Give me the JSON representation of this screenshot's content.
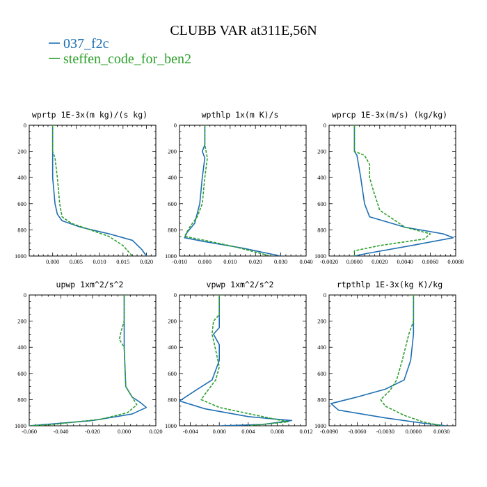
{
  "figure": {
    "title": "CLUBB VAR at311E,56N"
  },
  "legend": [
    {
      "name": "037_f2c",
      "color": "#1f6fb2",
      "dash": ""
    },
    {
      "name": "steffen_code_for_ben2",
      "color": "#2ca02c",
      "dash": "4,2"
    }
  ],
  "chart_data": [
    {
      "type": "line",
      "title": "wprtp  1E-3x(m kg)/(s kg)",
      "xlim": [
        -0.005,
        0.022
      ],
      "ylim": [
        1000,
        0
      ],
      "xticks": [
        0.0,
        0.005,
        0.01,
        0.015,
        0.02
      ],
      "xtick_labels": [
        "0.000",
        "0.005",
        "0.010",
        "0.015",
        "0.020"
      ],
      "yticks": [
        0,
        200,
        400,
        600,
        800,
        1000
      ],
      "ytick_labels": [
        "0",
        "200",
        "400",
        "600",
        "800",
        "1000"
      ],
      "series": [
        {
          "name": "037_f2c",
          "values": [
            [
              0.0,
              0
            ],
            [
              0.0,
              200
            ],
            [
              0.0,
              400
            ],
            [
              0.0005,
              600
            ],
            [
              0.001,
              680
            ],
            [
              0.002,
              730
            ],
            [
              0.006,
              780
            ],
            [
              0.012,
              830
            ],
            [
              0.017,
              880
            ],
            [
              0.019,
              950
            ],
            [
              0.02,
              1000
            ]
          ]
        },
        {
          "name": "steffen_code_for_ben2",
          "values": [
            [
              0.0,
              0
            ],
            [
              0.0,
              200
            ],
            [
              0.0005,
              250
            ],
            [
              0.001,
              400
            ],
            [
              0.0015,
              600
            ],
            [
              0.002,
              700
            ],
            [
              0.004,
              750
            ],
            [
              0.008,
              800
            ],
            [
              0.012,
              850
            ],
            [
              0.015,
              920
            ],
            [
              0.017,
              1000
            ]
          ]
        }
      ]
    },
    {
      "type": "line",
      "title": "wpthlp  1x(m K)/s",
      "xlim": [
        -0.01,
        0.04
      ],
      "ylim": [
        1000,
        0
      ],
      "xticks": [
        -0.01,
        0.0,
        0.01,
        0.02,
        0.03,
        0.04
      ],
      "xtick_labels": [
        "-0.010",
        "0.000",
        "0.010",
        "0.020",
        "0.030",
        "0.040"
      ],
      "yticks": [
        0,
        200,
        400,
        600,
        800,
        1000
      ],
      "ytick_labels": [
        "0",
        "200",
        "400",
        "600",
        "800",
        "1000"
      ],
      "series": [
        {
          "name": "037_f2c",
          "values": [
            [
              0.0,
              0
            ],
            [
              0.0,
              150
            ],
            [
              -0.001,
              200
            ],
            [
              0.0,
              250
            ],
            [
              -0.001,
              400
            ],
            [
              -0.002,
              600
            ],
            [
              -0.004,
              750
            ],
            [
              -0.007,
              820
            ],
            [
              -0.008,
              860
            ],
            [
              0.0,
              890
            ],
            [
              0.015,
              940
            ],
            [
              0.025,
              980
            ],
            [
              0.03,
              1000
            ]
          ]
        },
        {
          "name": "steffen_code_for_ben2",
          "values": [
            [
              0.0,
              0
            ],
            [
              0.0,
              150
            ],
            [
              0.001,
              250
            ],
            [
              0.0,
              400
            ],
            [
              -0.001,
              600
            ],
            [
              -0.003,
              700
            ],
            [
              -0.006,
              780
            ],
            [
              -0.008,
              850
            ],
            [
              0.0,
              880
            ],
            [
              0.012,
              930
            ],
            [
              0.02,
              970
            ],
            [
              0.026,
              1000
            ]
          ]
        }
      ]
    },
    {
      "type": "line",
      "title": "wprcp  1E-3x(m/s) (kg/kg)",
      "xlim": [
        -0.002,
        0.008
      ],
      "ylim": [
        1000,
        0
      ],
      "xticks": [
        -0.002,
        0.0,
        0.002,
        0.004,
        0.006,
        0.008
      ],
      "xtick_labels": [
        "-0.0020",
        "0.0000",
        "0.0020",
        "0.0040",
        "0.0060",
        "0.0080"
      ],
      "yticks": [
        0,
        200,
        400,
        600,
        800,
        1000
      ],
      "ytick_labels": [
        "0",
        "200",
        "400",
        "600",
        "800",
        "1000"
      ],
      "series": [
        {
          "name": "037_f2c",
          "values": [
            [
              0.0,
              0
            ],
            [
              0.0,
              200
            ],
            [
              0.0002,
              230
            ],
            [
              0.0005,
              400
            ],
            [
              0.0008,
              600
            ],
            [
              0.0012,
              700
            ],
            [
              0.004,
              780
            ],
            [
              0.007,
              830
            ],
            [
              0.0078,
              860
            ],
            [
              0.0045,
              920
            ],
            [
              0.001,
              980
            ],
            [
              0.0,
              1000
            ]
          ]
        },
        {
          "name": "steffen_code_for_ben2",
          "values": [
            [
              0.0,
              0
            ],
            [
              0.0,
              200
            ],
            [
              0.0008,
              230
            ],
            [
              0.0012,
              300
            ],
            [
              0.0012,
              400
            ],
            [
              0.0015,
              500
            ],
            [
              0.002,
              650
            ],
            [
              0.004,
              780
            ],
            [
              0.006,
              830
            ],
            [
              0.0055,
              870
            ],
            [
              0.002,
              920
            ],
            [
              0.0,
              960
            ],
            [
              0.0,
              1000
            ]
          ]
        }
      ]
    },
    {
      "type": "line",
      "title": "upwp  1xm^2/s^2",
      "xlim": [
        -0.06,
        0.02
      ],
      "ylim": [
        1000,
        0
      ],
      "xticks": [
        -0.06,
        -0.04,
        -0.02,
        0.0,
        0.02
      ],
      "xtick_labels": [
        "-0.060",
        "-0.040",
        "-0.020",
        "0.000",
        "0.020"
      ],
      "yticks": [
        0,
        200,
        400,
        600,
        800,
        1000
      ],
      "ytick_labels": [
        "0",
        "200",
        "400",
        "600",
        "800",
        "1000"
      ],
      "series": [
        {
          "name": "037_f2c",
          "values": [
            [
              0.0,
              0
            ],
            [
              0.0,
              200
            ],
            [
              0.0,
              300
            ],
            [
              0.0,
              400
            ],
            [
              0.001,
              700
            ],
            [
              0.005,
              780
            ],
            [
              0.01,
              820
            ],
            [
              0.014,
              860
            ],
            [
              0.005,
              910
            ],
            [
              -0.02,
              960
            ],
            [
              -0.06,
              1000
            ]
          ]
        },
        {
          "name": "steffen_code_for_ben2",
          "values": [
            [
              0.0,
              0
            ],
            [
              0.0,
              200
            ],
            [
              -0.002,
              280
            ],
            [
              -0.003,
              340
            ],
            [
              0.0,
              400
            ],
            [
              0.001,
              700
            ],
            [
              0.005,
              780
            ],
            [
              0.008,
              840
            ],
            [
              0.002,
              900
            ],
            [
              -0.015,
              950
            ],
            [
              -0.045,
              990
            ],
            [
              -0.06,
              1000
            ]
          ]
        }
      ]
    },
    {
      "type": "line",
      "title": "vpwp  1xm^2/s^2",
      "xlim": [
        -0.0055,
        0.012
      ],
      "ylim": [
        1000,
        0
      ],
      "xticks": [
        -0.004,
        0.0,
        0.004,
        0.008,
        0.012
      ],
      "xtick_labels": [
        "-0.004",
        "0.000",
        "0.004",
        "0.008",
        "0.012"
      ],
      "yticks": [
        0,
        200,
        400,
        600,
        800,
        1000
      ],
      "ytick_labels": [
        "0",
        "200",
        "400",
        "600",
        "800",
        "1000"
      ],
      "series": [
        {
          "name": "037_f2c",
          "values": [
            [
              0.0,
              0
            ],
            [
              0.0,
              150
            ],
            [
              0.0,
              250
            ],
            [
              -0.0008,
              300
            ],
            [
              0.0,
              380
            ],
            [
              0.0,
              500
            ],
            [
              -0.001,
              650
            ],
            [
              -0.003,
              720
            ],
            [
              -0.0055,
              810
            ],
            [
              -0.002,
              870
            ],
            [
              0.004,
              930
            ],
            [
              0.01,
              960
            ],
            [
              0.006,
              990
            ],
            [
              0.0,
              1000
            ]
          ]
        },
        {
          "name": "steffen_code_for_ben2",
          "values": [
            [
              0.0,
              0
            ],
            [
              0.0,
              150
            ],
            [
              -0.0008,
              200
            ],
            [
              -0.001,
              300
            ],
            [
              -0.0005,
              420
            ],
            [
              0.0,
              550
            ],
            [
              -0.0005,
              650
            ],
            [
              -0.002,
              760
            ],
            [
              -0.0025,
              800
            ],
            [
              0.0,
              860
            ],
            [
              0.006,
              930
            ],
            [
              0.0095,
              970
            ],
            [
              0.004,
              1000
            ]
          ]
        }
      ]
    },
    {
      "type": "line",
      "title": "rtpthlp  1E-3x(kg K)/kg",
      "xlim": [
        -0.009,
        0.0045
      ],
      "ylim": [
        1000,
        0
      ],
      "xticks": [
        -0.009,
        -0.006,
        -0.003,
        0.0,
        0.003
      ],
      "xtick_labels": [
        "-0.0090",
        "-0.0060",
        "-0.0030",
        "0.0000",
        "0.0030"
      ],
      "yticks": [
        0,
        200,
        400,
        600,
        800,
        1000
      ],
      "ytick_labels": [
        "0",
        "200",
        "400",
        "600",
        "800",
        "1000"
      ],
      "series": [
        {
          "name": "037_f2c",
          "values": [
            [
              0.0,
              0
            ],
            [
              0.0,
              200
            ],
            [
              0.0,
              300
            ],
            [
              -0.0003,
              500
            ],
            [
              -0.001,
              650
            ],
            [
              -0.003,
              720
            ],
            [
              -0.006,
              780
            ],
            [
              -0.0088,
              830
            ],
            [
              -0.008,
              880
            ],
            [
              -0.003,
              940
            ],
            [
              0.001,
              980
            ],
            [
              0.0035,
              1000
            ]
          ]
        },
        {
          "name": "steffen_code_for_ben2",
          "values": [
            [
              0.0,
              0
            ],
            [
              0.0,
              200
            ],
            [
              -0.0005,
              300
            ],
            [
              -0.0012,
              500
            ],
            [
              -0.0018,
              650
            ],
            [
              -0.0025,
              730
            ],
            [
              -0.0035,
              800
            ],
            [
              -0.003,
              850
            ],
            [
              -0.001,
              920
            ],
            [
              0.001,
              970
            ],
            [
              0.003,
              1000
            ]
          ]
        }
      ]
    }
  ]
}
